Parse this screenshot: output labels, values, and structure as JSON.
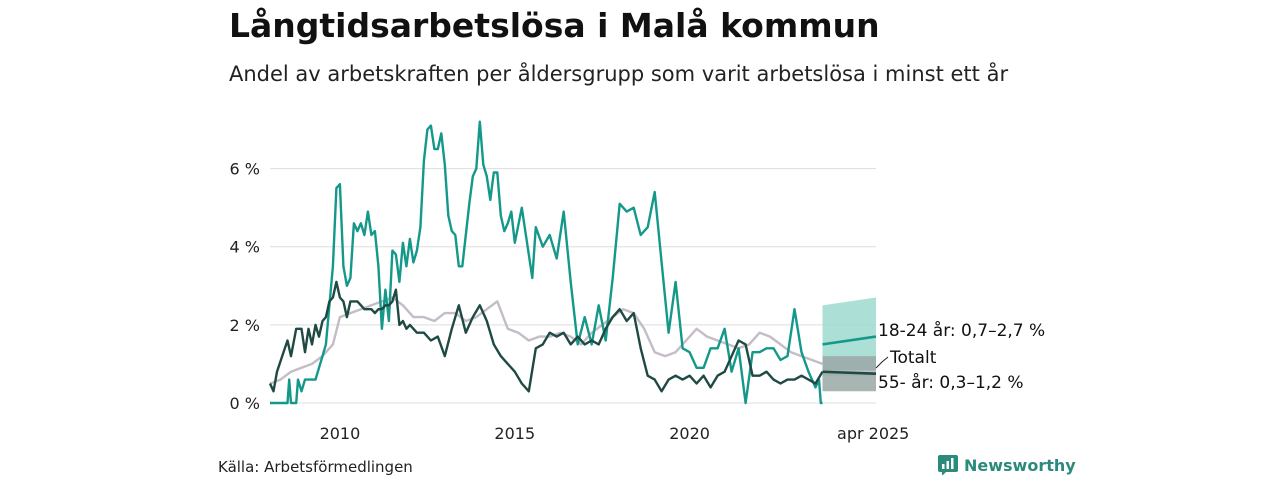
{
  "title": "Långtidsarbetslösa i Malå kommun",
  "subtitle": "Andel av arbetskraften per åldersgrupp som varit arbetslösa i minst ett år",
  "source": "Källa: Arbetsförmedlingen",
  "brand": {
    "name": "Newsworthy",
    "icon": "newsworthy-logo-icon"
  },
  "colors": {
    "young": "#14988a",
    "total": "#c4bcc7",
    "old": "#1f4a44",
    "band_young": "#9dd9cf",
    "band_old": "#9aa8a6",
    "grid": "#dddddd"
  },
  "chart_data": {
    "type": "line",
    "title": "Långtidsarbetslösa i Malå kommun",
    "subtitle": "Andel av arbetskraften per åldersgrupp som varit arbetslösa i minst ett år",
    "xlabel": "",
    "ylabel": "",
    "ylim": [
      0,
      7.5
    ],
    "xlim": [
      2008,
      2025.33
    ],
    "grid": "horizontal",
    "y_ticks": [
      {
        "value": 0,
        "label": "0 %"
      },
      {
        "value": 2,
        "label": "2 %"
      },
      {
        "value": 4,
        "label": "4 %"
      },
      {
        "value": 6,
        "label": "6 %"
      }
    ],
    "x_ticks": [
      {
        "value": 2010,
        "label": "2010"
      },
      {
        "value": 2015,
        "label": "2015"
      },
      {
        "value": 2020,
        "label": "2020"
      },
      {
        "value": 2025.25,
        "label": "apr 2025"
      }
    ],
    "series": [
      {
        "name": "18-24 år",
        "color_key": "young",
        "x": [
          2008.0,
          2008.3,
          2008.4,
          2008.5,
          2008.55,
          2008.6,
          2008.7,
          2008.75,
          2008.8,
          2008.9,
          2009.0,
          2009.1,
          2009.2,
          2009.3,
          2009.4,
          2009.5,
          2009.6,
          2009.7,
          2009.8,
          2009.9,
          2010.0,
          2010.1,
          2010.2,
          2010.3,
          2010.4,
          2010.5,
          2010.6,
          2010.7,
          2010.8,
          2010.9,
          2011.0,
          2011.1,
          2011.2,
          2011.3,
          2011.4,
          2011.5,
          2011.6,
          2011.7,
          2011.8,
          2011.9,
          2012.0,
          2012.1,
          2012.2,
          2012.3,
          2012.4,
          2012.5,
          2012.6,
          2012.7,
          2012.8,
          2012.9,
          2013.0,
          2013.1,
          2013.2,
          2013.3,
          2013.4,
          2013.5,
          2013.6,
          2013.7,
          2013.8,
          2013.9,
          2014.0,
          2014.1,
          2014.2,
          2014.3,
          2014.4,
          2014.5,
          2014.6,
          2014.7,
          2014.8,
          2014.9,
          2015.0,
          2015.2,
          2015.4,
          2015.5,
          2015.6,
          2015.8,
          2016.0,
          2016.2,
          2016.4,
          2016.6,
          2016.8,
          2017.0,
          2017.2,
          2017.4,
          2017.6,
          2017.8,
          2018.0,
          2018.2,
          2018.4,
          2018.6,
          2018.8,
          2019.0,
          2019.2,
          2019.4,
          2019.6,
          2019.8,
          2020.0,
          2020.2,
          2020.4,
          2020.6,
          2020.8,
          2021.0,
          2021.2,
          2021.4,
          2021.6,
          2021.8,
          2022.0,
          2022.2,
          2022.4,
          2022.6,
          2022.8,
          2023.0,
          2023.2,
          2023.4,
          2023.6,
          2023.7,
          2023.75,
          2023.8
        ],
        "y": [
          0,
          0,
          0,
          0,
          0.6,
          0,
          0,
          0,
          0.6,
          0.3,
          0.6,
          0.6,
          0.6,
          0.6,
          0.9,
          1.2,
          1.5,
          2.5,
          3.5,
          5.5,
          5.6,
          3.5,
          3.0,
          3.2,
          4.6,
          4.4,
          4.6,
          4.3,
          4.9,
          4.3,
          4.4,
          3.5,
          1.9,
          2.9,
          2.1,
          3.9,
          3.8,
          3.1,
          4.1,
          3.5,
          4.2,
          3.6,
          3.9,
          4.5,
          6.2,
          7.0,
          7.1,
          6.5,
          6.5,
          6.9,
          6.1,
          4.8,
          4.4,
          4.3,
          3.5,
          3.5,
          4.3,
          5.1,
          5.8,
          6.0,
          7.2,
          6.1,
          5.8,
          5.2,
          5.9,
          5.9,
          4.8,
          4.4,
          4.6,
          4.9,
          4.1,
          5.0,
          3.8,
          3.2,
          4.5,
          4.0,
          4.3,
          3.7,
          4.9,
          3.1,
          1.5,
          2.2,
          1.5,
          2.5,
          1.6,
          3.2,
          5.1,
          4.9,
          5.0,
          4.3,
          4.5,
          5.4,
          3.6,
          1.8,
          3.1,
          1.4,
          1.3,
          0.9,
          0.9,
          1.4,
          1.4,
          1.9,
          0.8,
          1.4,
          0.0,
          1.3,
          1.3,
          1.4,
          1.4,
          1.1,
          1.2,
          2.4,
          1.3,
          0.8,
          0.4,
          0.6,
          0.0,
          0.0
        ]
      },
      {
        "name": "Totalt",
        "color_key": "total",
        "x": [
          2008.0,
          2008.3,
          2008.6,
          2008.9,
          2009.2,
          2009.5,
          2009.8,
          2010.0,
          2010.3,
          2010.6,
          2010.9,
          2011.2,
          2011.5,
          2011.8,
          2012.1,
          2012.4,
          2012.7,
          2013.0,
          2013.3,
          2013.6,
          2013.9,
          2014.2,
          2014.5,
          2014.8,
          2015.1,
          2015.4,
          2015.7,
          2016.0,
          2016.3,
          2016.6,
          2016.9,
          2017.2,
          2017.5,
          2017.8,
          2018.1,
          2018.4,
          2018.7,
          2019.0,
          2019.3,
          2019.6,
          2019.9,
          2020.2,
          2020.5,
          2020.8,
          2021.1,
          2021.4,
          2021.7,
          2022.0,
          2022.3,
          2022.6,
          2022.9,
          2023.2,
          2023.5,
          2023.8
        ],
        "y": [
          0.5,
          0.6,
          0.8,
          0.9,
          1.0,
          1.2,
          1.5,
          2.2,
          2.3,
          2.4,
          2.5,
          2.6,
          2.7,
          2.5,
          2.2,
          2.2,
          2.1,
          2.3,
          2.3,
          2.1,
          2.2,
          2.4,
          2.6,
          1.9,
          1.8,
          1.6,
          1.7,
          1.7,
          1.8,
          1.7,
          1.5,
          1.8,
          2.0,
          2.2,
          2.4,
          2.3,
          1.9,
          1.3,
          1.2,
          1.3,
          1.6,
          1.9,
          1.7,
          1.6,
          1.5,
          1.4,
          1.5,
          1.8,
          1.7,
          1.5,
          1.3,
          1.2,
          1.1,
          1.0
        ]
      },
      {
        "name": "55- år",
        "color_key": "old",
        "x": [
          2008.0,
          2008.1,
          2008.2,
          2008.35,
          2008.5,
          2008.6,
          2008.75,
          2008.9,
          2009.0,
          2009.1,
          2009.2,
          2009.3,
          2009.4,
          2009.5,
          2009.6,
          2009.7,
          2009.8,
          2009.9,
          2010.0,
          2010.1,
          2010.2,
          2010.3,
          2010.5,
          2010.7,
          2010.9,
          2011.0,
          2011.1,
          2011.2,
          2011.3,
          2011.4,
          2011.5,
          2011.6,
          2011.7,
          2011.8,
          2011.9,
          2012.0,
          2012.2,
          2012.4,
          2012.6,
          2012.8,
          2013.0,
          2013.2,
          2013.4,
          2013.6,
          2013.8,
          2014.0,
          2014.2,
          2014.4,
          2014.6,
          2014.8,
          2015.0,
          2015.2,
          2015.4,
          2015.6,
          2015.8,
          2016.0,
          2016.2,
          2016.4,
          2016.6,
          2016.8,
          2017.0,
          2017.2,
          2017.4,
          2017.6,
          2017.8,
          2018.0,
          2018.2,
          2018.4,
          2018.6,
          2018.8,
          2019.0,
          2019.2,
          2019.4,
          2019.6,
          2019.8,
          2020.0,
          2020.2,
          2020.4,
          2020.6,
          2020.8,
          2021.0,
          2021.2,
          2021.4,
          2021.6,
          2021.8,
          2022.0,
          2022.2,
          2022.4,
          2022.6,
          2022.8,
          2023.0,
          2023.2,
          2023.4,
          2023.6,
          2023.8
        ],
        "y": [
          0.5,
          0.3,
          0.8,
          1.2,
          1.6,
          1.2,
          1.9,
          1.9,
          1.3,
          1.9,
          1.5,
          2.0,
          1.7,
          2.1,
          2.2,
          2.6,
          2.7,
          3.1,
          2.7,
          2.6,
          2.2,
          2.6,
          2.6,
          2.4,
          2.4,
          2.3,
          2.4,
          2.4,
          2.5,
          2.5,
          2.6,
          2.9,
          2.0,
          2.1,
          1.9,
          2.0,
          1.8,
          1.8,
          1.6,
          1.7,
          1.2,
          1.9,
          2.5,
          1.8,
          2.2,
          2.5,
          2.1,
          1.5,
          1.2,
          1.0,
          0.8,
          0.5,
          0.3,
          1.4,
          1.5,
          1.8,
          1.7,
          1.8,
          1.5,
          1.7,
          1.5,
          1.6,
          1.5,
          1.9,
          2.2,
          2.4,
          2.1,
          2.3,
          1.4,
          0.7,
          0.6,
          0.3,
          0.6,
          0.7,
          0.6,
          0.7,
          0.5,
          0.7,
          0.4,
          0.7,
          0.8,
          1.2,
          1.6,
          1.5,
          0.7,
          0.7,
          0.8,
          0.6,
          0.5,
          0.6,
          0.6,
          0.7,
          0.6,
          0.5,
          0.8
        ]
      }
    ],
    "forecasts": [
      {
        "name": "18-24 år",
        "color_key": "young",
        "band_key": "band_young",
        "x": [
          2023.8,
          2025.33
        ],
        "y": [
          1.5,
          1.7
        ],
        "lower": [
          0.7,
          0.7
        ],
        "upper": [
          2.5,
          2.7
        ]
      },
      {
        "name": "Totalt",
        "color_key": "total",
        "x": [
          2023.8,
          2025.33
        ],
        "y": [
          0.8,
          0.8
        ]
      },
      {
        "name": "55- år",
        "color_key": "old",
        "band_key": "band_old",
        "x": [
          2023.8,
          2025.33
        ],
        "y": [
          0.8,
          0.75
        ],
        "lower": [
          0.3,
          0.3
        ],
        "upper": [
          1.2,
          1.2
        ]
      }
    ],
    "end_labels": [
      {
        "text": "18-24 år: 0,7–2,7 %",
        "series": "18-24 år"
      },
      {
        "text": "Totalt",
        "series": "Totalt"
      },
      {
        "text": "55- år: 0,3–1,2 %",
        "series": "55- år"
      }
    ]
  }
}
